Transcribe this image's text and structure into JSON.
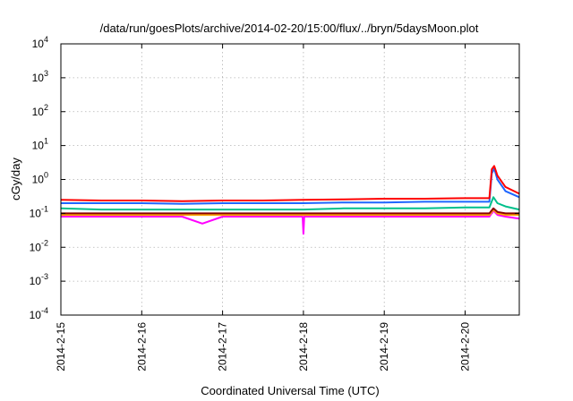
{
  "chart_data": {
    "type": "line",
    "title": "/data/run/goesPlots/archive/2014-02-20/15:00/flux/../bryn/5daysMoon.plot",
    "xlabel": "Coordinated Universal Time (UTC)",
    "ylabel": "cGy/day",
    "yscale": "log",
    "ylim": [
      0.0001,
      10000
    ],
    "xlim": [
      0,
      5.67
    ],
    "x_ticks": [
      {
        "value": 0,
        "label": "2014-2-15"
      },
      {
        "value": 1,
        "label": "2014-2-16"
      },
      {
        "value": 2,
        "label": "2014-2-17"
      },
      {
        "value": 3,
        "label": "2014-2-18"
      },
      {
        "value": 4,
        "label": "2014-2-19"
      },
      {
        "value": 5,
        "label": "2014-2-20"
      }
    ],
    "y_ticks": [
      {
        "value": 0.0001,
        "base": "10",
        "exp": "-4"
      },
      {
        "value": 0.001,
        "base": "10",
        "exp": "-3"
      },
      {
        "value": 0.01,
        "base": "10",
        "exp": "-2"
      },
      {
        "value": 0.1,
        "base": "10",
        "exp": "-1"
      },
      {
        "value": 1,
        "base": "10",
        "exp": "0"
      },
      {
        "value": 10,
        "base": "10",
        "exp": "1"
      },
      {
        "value": 100,
        "base": "10",
        "exp": "2"
      },
      {
        "value": 1000,
        "base": "10",
        "exp": "3"
      },
      {
        "value": 10000,
        "base": "10",
        "exp": "4"
      }
    ],
    "grid": true,
    "series": [
      {
        "color": "#ff00ff",
        "x": [
          0,
          0.5,
          1,
          1.5,
          1.75,
          2,
          2.5,
          2.99,
          3,
          3.01,
          3.5,
          4,
          4.5,
          5,
          5.3,
          5.35,
          5.4,
          5.5,
          5.67
        ],
        "y": [
          0.08,
          0.08,
          0.08,
          0.08,
          0.05,
          0.08,
          0.08,
          0.08,
          0.025,
          0.08,
          0.08,
          0.08,
          0.08,
          0.08,
          0.08,
          0.12,
          0.09,
          0.08,
          0.07
        ]
      },
      {
        "color": "#ffa500",
        "x": [
          0,
          0.5,
          1,
          1.5,
          2,
          2.5,
          3,
          3.5,
          4,
          4.5,
          5,
          5.3,
          5.35,
          5.4,
          5.5,
          5.67
        ],
        "y": [
          0.09,
          0.09,
          0.09,
          0.09,
          0.09,
          0.09,
          0.09,
          0.09,
          0.09,
          0.09,
          0.09,
          0.09,
          0.13,
          0.1,
          0.09,
          0.09
        ]
      },
      {
        "color": "#8b0000",
        "x": [
          0,
          0.5,
          1,
          1.5,
          2,
          2.5,
          3,
          3.5,
          4,
          4.5,
          5,
          5.3,
          5.35,
          5.4,
          5.5,
          5.67
        ],
        "y": [
          0.1,
          0.1,
          0.1,
          0.1,
          0.1,
          0.1,
          0.1,
          0.1,
          0.1,
          0.1,
          0.1,
          0.1,
          0.14,
          0.11,
          0.1,
          0.1
        ]
      },
      {
        "color": "#00c08b",
        "x": [
          0,
          0.5,
          1,
          1.5,
          2,
          2.5,
          3,
          3.5,
          4,
          4.5,
          5,
          5.3,
          5.35,
          5.4,
          5.5,
          5.67
        ],
        "y": [
          0.14,
          0.13,
          0.13,
          0.13,
          0.13,
          0.13,
          0.13,
          0.14,
          0.14,
          0.14,
          0.15,
          0.15,
          0.3,
          0.2,
          0.16,
          0.13
        ]
      },
      {
        "color": "#1e66ff",
        "x": [
          0,
          0.5,
          1,
          1.5,
          2,
          2.5,
          3,
          3.5,
          4,
          4.5,
          5,
          5.3,
          5.33,
          5.36,
          5.4,
          5.5,
          5.67
        ],
        "y": [
          0.2,
          0.2,
          0.2,
          0.19,
          0.2,
          0.2,
          0.2,
          0.21,
          0.21,
          0.22,
          0.22,
          0.22,
          1.5,
          2.1,
          1.0,
          0.45,
          0.3
        ]
      },
      {
        "color": "#ff0000",
        "x": [
          0,
          0.5,
          1,
          1.5,
          2,
          2.5,
          3,
          3.5,
          4,
          4.5,
          5,
          5.3,
          5.33,
          5.36,
          5.4,
          5.5,
          5.67
        ],
        "y": [
          0.25,
          0.24,
          0.24,
          0.23,
          0.24,
          0.24,
          0.25,
          0.26,
          0.27,
          0.27,
          0.28,
          0.28,
          2.0,
          2.5,
          1.3,
          0.6,
          0.38
        ]
      }
    ]
  }
}
